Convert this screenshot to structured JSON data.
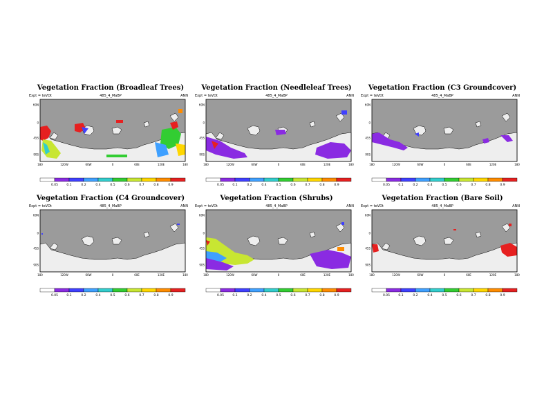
{
  "common": {
    "expt_label": "Expt = teVDt",
    "run_label": "485_4_MaBP",
    "season_label": "ANN",
    "lat_labels": [
      "60N",
      "0",
      "45S",
      "90S"
    ],
    "lon_labels": [
      "180",
      "120W",
      "60W",
      "0",
      "60E",
      "120E",
      "180"
    ],
    "colorbar_labels": [
      "0.05",
      "0.1",
      "0.2",
      "0.4",
      "0.5",
      "0.6",
      "0.7",
      "0.8",
      "0.9"
    ],
    "colorbar_colors": [
      "#ffffff",
      "#8a2be2",
      "#3f3fff",
      "#3fa0ff",
      "#32cdcd",
      "#32cd32",
      "#c8e632",
      "#ffd700",
      "#ff8c00",
      "#e62020"
    ],
    "ocean_color": "#9b9b9b",
    "land_color": "#eeeeee"
  },
  "panels": [
    {
      "title": "Vegetation Fraction (Broadleaf Trees)"
    },
    {
      "title": "Vegetation Fraction (Needleleaf Trees)"
    },
    {
      "title": "Vegetation Fraction (C3 Groundcover)"
    },
    {
      "title": "Vegetation Fraction (C4 Groundcover)"
    },
    {
      "title": "Vegetation Fraction (Shrubs)"
    },
    {
      "title": "Vegetation Fraction (Bare Soil)"
    }
  ]
}
